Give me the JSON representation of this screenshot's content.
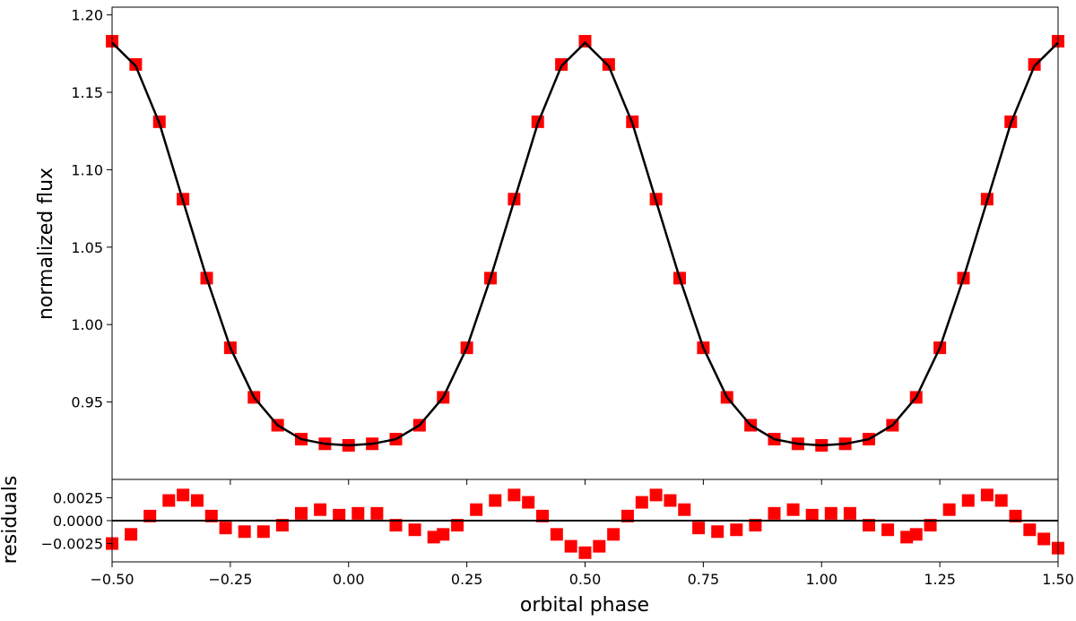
{
  "colors": {
    "data_marker": "#ff0000",
    "model_line": "#000000",
    "axes": "#000000",
    "background": "#ffffff"
  },
  "chart_data": [
    {
      "type": "scatter",
      "title": "",
      "xlabel": "",
      "ylabel": "normalized flux",
      "xlim": [
        -0.5,
        1.5
      ],
      "ylim": [
        0.9,
        1.205
      ],
      "grid": false,
      "xticks": [
        -0.5,
        -0.25,
        0.0,
        0.25,
        0.5,
        0.75,
        1.0,
        1.25,
        1.5
      ],
      "xtick_labels": [],
      "yticks": [
        0.95,
        1.0,
        1.05,
        1.1,
        1.15,
        1.2
      ],
      "ytick_labels": [
        "0.95",
        "1.00",
        "1.05",
        "1.10",
        "1.15",
        "1.20"
      ],
      "series": [
        {
          "marker": "square",
          "x": [
            -0.5,
            -0.45,
            -0.4,
            -0.35,
            -0.3,
            -0.25,
            -0.2,
            -0.15,
            -0.1,
            -0.05,
            0.0,
            0.05,
            0.1,
            0.15,
            0.2,
            0.25,
            0.3,
            0.35,
            0.4,
            0.45,
            0.5,
            0.55,
            0.6,
            0.65,
            0.7,
            0.75,
            0.8,
            0.85,
            0.9,
            0.95,
            1.0,
            1.05,
            1.1,
            1.15,
            1.2,
            1.25,
            1.3,
            1.35,
            1.4,
            1.45,
            1.5
          ],
          "y": [
            1.183,
            1.168,
            1.131,
            1.081,
            1.03,
            0.985,
            0.953,
            0.935,
            0.926,
            0.923,
            0.922,
            0.923,
            0.926,
            0.935,
            0.953,
            0.985,
            1.03,
            1.081,
            1.131,
            1.168,
            1.183,
            1.168,
            1.131,
            1.081,
            1.03,
            0.985,
            0.953,
            0.935,
            0.926,
            0.923,
            0.922,
            0.923,
            0.926,
            0.935,
            0.953,
            0.985,
            1.03,
            1.081,
            1.131,
            1.168,
            1.183
          ]
        },
        {
          "type": "line",
          "x": [
            -0.5,
            -0.45,
            -0.4,
            -0.35,
            -0.3,
            -0.25,
            -0.2,
            -0.15,
            -0.1,
            -0.05,
            0.0,
            0.05,
            0.1,
            0.15,
            0.2,
            0.25,
            0.3,
            0.35,
            0.4,
            0.45,
            0.5,
            0.55,
            0.6,
            0.65,
            0.7,
            0.75,
            0.8,
            0.85,
            0.9,
            0.95,
            1.0,
            1.05,
            1.1,
            1.15,
            1.2,
            1.25,
            1.3,
            1.35,
            1.4,
            1.45,
            1.5
          ],
          "y": [
            1.182,
            1.167,
            1.13,
            1.08,
            1.03,
            0.985,
            0.953,
            0.935,
            0.926,
            0.923,
            0.922,
            0.923,
            0.926,
            0.935,
            0.953,
            0.985,
            1.03,
            1.08,
            1.13,
            1.167,
            1.182,
            1.167,
            1.13,
            1.08,
            1.03,
            0.985,
            0.953,
            0.935,
            0.926,
            0.923,
            0.922,
            0.923,
            0.926,
            0.935,
            0.953,
            0.985,
            1.03,
            1.08,
            1.13,
            1.167,
            1.182
          ]
        }
      ]
    },
    {
      "type": "scatter",
      "title": "",
      "xlabel": "orbital phase",
      "ylabel": "residuals",
      "xlim": [
        -0.5,
        1.5
      ],
      "ylim": [
        -0.0045,
        0.0045
      ],
      "grid": false,
      "xticks": [
        -0.5,
        -0.25,
        0.0,
        0.25,
        0.5,
        0.75,
        1.0,
        1.25,
        1.5
      ],
      "xtick_labels": [
        "−0.50",
        "−0.25",
        "0.00",
        "0.25",
        "0.50",
        "0.75",
        "1.00",
        "1.25",
        "1.50"
      ],
      "yticks": [
        -0.0025,
        0.0,
        0.0025
      ],
      "ytick_labels": [
        "−0.0025",
        "0.0000",
        "0.0025"
      ],
      "zero_line": 0.0,
      "series": [
        {
          "marker": "square",
          "x": [
            -0.5,
            -0.46,
            -0.42,
            -0.38,
            -0.35,
            -0.32,
            -0.29,
            -0.26,
            -0.22,
            -0.18,
            -0.14,
            -0.1,
            -0.06,
            -0.02,
            0.02,
            0.06,
            0.1,
            0.14,
            0.18,
            0.2,
            0.23,
            0.27,
            0.31,
            0.35,
            0.38,
            0.41,
            0.44,
            0.47,
            0.5,
            0.53,
            0.56,
            0.59,
            0.62,
            0.65,
            0.68,
            0.71,
            0.74,
            0.78,
            0.82,
            0.86,
            0.9,
            0.94,
            0.98,
            1.02,
            1.06,
            1.1,
            1.14,
            1.18,
            1.2,
            1.23,
            1.27,
            1.31,
            1.35,
            1.38,
            1.41,
            1.44,
            1.47,
            1.5
          ],
          "y": [
            -0.0025,
            -0.0015,
            0.0005,
            0.0022,
            0.0028,
            0.0022,
            0.0005,
            -0.0008,
            -0.0012,
            -0.0012,
            -0.0005,
            0.0008,
            0.0012,
            0.0006,
            0.0008,
            0.0008,
            -0.0005,
            -0.001,
            -0.0018,
            -0.0015,
            -0.0005,
            0.0012,
            0.0022,
            0.0028,
            0.002,
            0.0005,
            -0.0015,
            -0.0028,
            -0.0035,
            -0.0028,
            -0.0015,
            0.0005,
            0.002,
            0.0028,
            0.0022,
            0.0012,
            -0.0008,
            -0.0012,
            -0.001,
            -0.0005,
            0.0008,
            0.0012,
            0.0006,
            0.0008,
            0.0008,
            -0.0005,
            -0.001,
            -0.0018,
            -0.0015,
            -0.0005,
            0.0012,
            0.0022,
            0.0028,
            0.0022,
            0.0005,
            -0.001,
            -0.002,
            -0.003
          ]
        }
      ]
    }
  ]
}
